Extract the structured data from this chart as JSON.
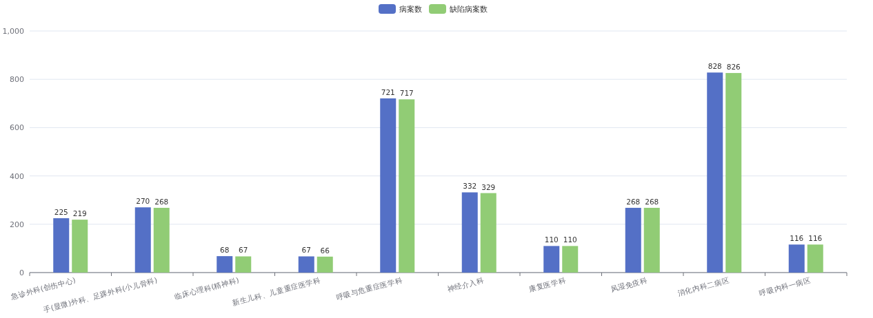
{
  "chart_data": {
    "type": "bar",
    "categories": [
      "急诊外科(创伤中心)",
      "手(显微)外科、足踝外科(小儿骨科)",
      "临床心理科(精神科)",
      "新生儿科、儿童重症医学科",
      "呼吸与危重症医学科",
      "神经介入科",
      "康复医学科",
      "风湿免疫科",
      "消化内科二病区",
      "呼吸内科一病区"
    ],
    "series": [
      {
        "name": "病案数",
        "color": "#5470c6",
        "values": [
          225,
          270,
          68,
          67,
          721,
          332,
          110,
          268,
          828,
          116
        ]
      },
      {
        "name": "缺陷病案数",
        "color": "#91cc75",
        "values": [
          219,
          268,
          67,
          66,
          717,
          329,
          110,
          268,
          826,
          116
        ]
      }
    ],
    "ylim": [
      0,
      1000
    ],
    "yticks": [
      0,
      {
        "value": 200,
        "label": "200"
      },
      400,
      600,
      800,
      {
        "value": 1000,
        "label": "1,000"
      }
    ],
    "grid": "y",
    "legend": "top",
    "data_labels": true
  }
}
